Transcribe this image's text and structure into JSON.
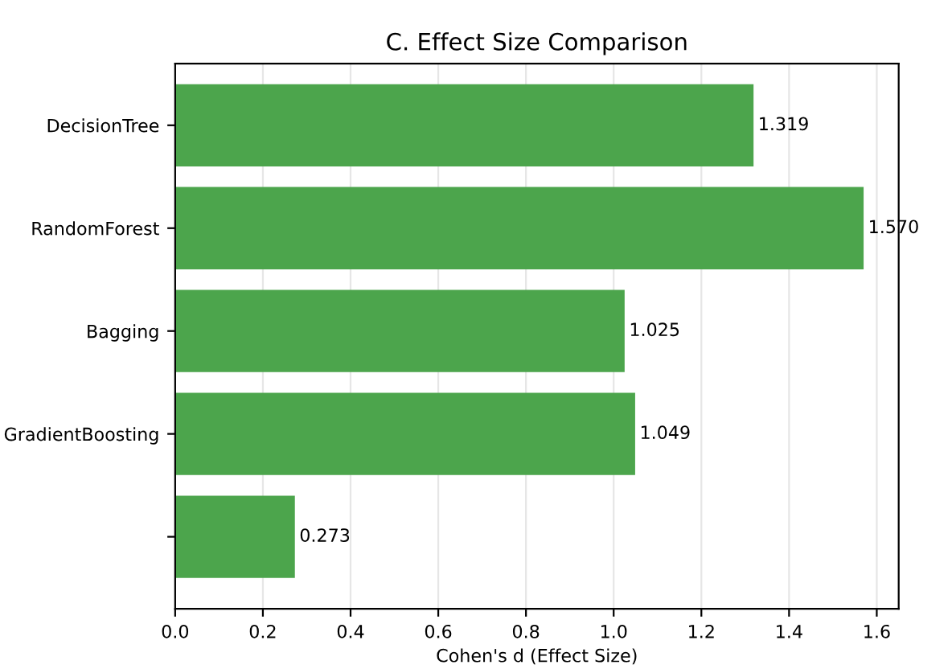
{
  "chart_data": {
    "type": "bar",
    "orientation": "horizontal",
    "title": "C. Effect Size Comparison",
    "xlabel": "Cohen's d (Effect Size)",
    "categories": [
      "DecisionTree",
      "RandomForest",
      "Bagging",
      "GradientBoosting",
      null
    ],
    "values": [
      1.319,
      1.57,
      1.025,
      1.049,
      0.273
    ],
    "value_labels": [
      "1.319",
      "1.570",
      "1.025",
      "1.049",
      "0.273"
    ],
    "color": "#4ca54c",
    "xlim": [
      0,
      1.65
    ],
    "xticks": [
      {
        "value": 0,
        "label": "0.0"
      },
      0.2,
      0.4,
      0.6,
      0.8,
      {
        "value": 1,
        "label": "1.0"
      },
      1.2,
      1.4,
      1.6
    ],
    "grid": "x"
  }
}
